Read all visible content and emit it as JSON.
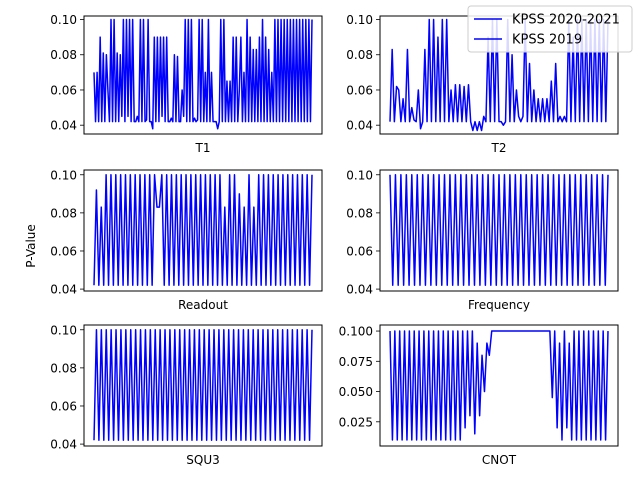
{
  "figure": {
    "ylabel": "P-Value",
    "legend": {
      "placement": "top-right",
      "entries": [
        {
          "label": "KPSS 2020-2021",
          "color": "#0000ff"
        },
        {
          "label": "KPSS 2019",
          "color": "#0000ff"
        }
      ]
    }
  },
  "chart_data": [
    {
      "type": "line",
      "xlabel": "T1",
      "ylim": [
        0.035,
        0.102
      ],
      "yticks": [
        "0.04",
        "0.06",
        "0.08",
        "0.10"
      ],
      "yticks_values": [
        0.04,
        0.06,
        0.08,
        0.1
      ],
      "series_color": "#0000ff",
      "values": [
        0.07,
        0.042,
        0.07,
        0.042,
        0.09,
        0.042,
        0.081,
        0.042,
        0.08,
        0.06,
        0.042,
        0.1,
        0.042,
        0.1,
        0.042,
        0.081,
        0.042,
        0.08,
        0.045,
        0.1,
        0.042,
        0.1,
        0.045,
        0.1,
        0.042,
        0.1,
        0.042,
        0.042,
        0.045,
        0.042,
        0.1,
        0.042,
        0.1,
        0.042,
        0.043,
        0.1,
        0.042,
        0.042,
        0.038,
        0.09,
        0.042,
        0.09,
        0.042,
        0.09,
        0.045,
        0.09,
        0.042,
        0.09,
        0.042,
        0.042,
        0.044,
        0.042,
        0.08,
        0.042,
        0.079,
        0.042,
        0.042,
        0.06,
        0.045,
        0.1,
        0.042,
        0.1,
        0.042,
        0.1,
        0.042,
        0.044,
        0.042,
        0.043,
        0.1,
        0.042,
        0.1,
        0.042,
        0.07,
        0.042,
        0.1,
        0.042,
        0.07,
        0.042,
        0.042,
        0.042,
        0.038,
        0.042,
        0.1,
        0.042,
        0.1,
        0.042,
        0.065,
        0.042,
        0.065,
        0.042,
        0.09,
        0.042,
        0.09,
        0.042,
        0.06,
        0.09,
        0.042,
        0.07,
        0.042,
        0.1,
        0.042,
        0.09,
        0.042,
        0.083,
        0.042,
        0.083,
        0.042,
        0.09,
        0.042,
        0.1,
        0.042,
        0.09,
        0.042,
        0.083,
        0.042,
        0.07,
        0.042,
        0.1,
        0.042,
        0.1,
        0.042,
        0.1,
        0.042,
        0.1,
        0.042,
        0.1,
        0.042,
        0.1,
        0.042,
        0.1,
        0.042,
        0.1,
        0.042,
        0.1,
        0.042,
        0.1,
        0.042,
        0.1,
        0.042,
        0.1,
        0.042,
        0.1
      ]
    },
    {
      "type": "line",
      "xlabel": "T2",
      "ylim": [
        0.035,
        0.102
      ],
      "yticks": [
        "0.04",
        "0.06",
        "0.08",
        "0.10"
      ],
      "yticks_values": [
        0.04,
        0.06,
        0.08,
        0.1
      ],
      "series_color": "#0000ff",
      "values": [
        0.042,
        0.083,
        0.042,
        0.062,
        0.06,
        0.042,
        0.055,
        0.042,
        0.083,
        0.042,
        0.05,
        0.043,
        0.042,
        0.06,
        0.038,
        0.042,
        0.083,
        0.042,
        0.1,
        0.042,
        0.1,
        0.042,
        0.09,
        0.042,
        0.1,
        0.042,
        0.1,
        0.042,
        0.06,
        0.042,
        0.063,
        0.042,
        0.063,
        0.042,
        0.062,
        0.042,
        0.063,
        0.042,
        0.037,
        0.042,
        0.037,
        0.042,
        0.037,
        0.045,
        0.042,
        0.09,
        0.042,
        0.1,
        0.042,
        0.1,
        0.042,
        0.042,
        0.04,
        0.042,
        0.1,
        0.042,
        0.08,
        0.042,
        0.06,
        0.045,
        0.042,
        0.045,
        0.1,
        0.042,
        0.075,
        0.042,
        0.06,
        0.042,
        0.055,
        0.042,
        0.055,
        0.042,
        0.055,
        0.042,
        0.065,
        0.042,
        0.075,
        0.042,
        0.045,
        0.042,
        0.045,
        0.042,
        0.1,
        0.042,
        0.09,
        0.042,
        0.1,
        0.042,
        0.1,
        0.042,
        0.1,
        0.042,
        0.1,
        0.042,
        0.1,
        0.042,
        0.1,
        0.042,
        0.1,
        0.042,
        0.1
      ]
    },
    {
      "type": "line",
      "xlabel": "Readout",
      "ylim": [
        0.039,
        0.1025
      ],
      "yticks": [
        "0.04",
        "0.06",
        "0.08",
        "0.10"
      ],
      "yticks_values": [
        0.04,
        0.06,
        0.08,
        0.1
      ],
      "series_color": "#0000ff",
      "values": [
        0.042,
        0.092,
        0.042,
        0.083,
        0.042,
        0.1,
        0.042,
        0.1,
        0.042,
        0.1,
        0.042,
        0.1,
        0.042,
        0.1,
        0.042,
        0.1,
        0.042,
        0.1,
        0.042,
        0.1,
        0.042,
        0.1,
        0.042,
        0.1,
        0.042,
        0.1,
        0.083,
        0.083,
        0.1,
        0.042,
        0.1,
        0.042,
        0.1,
        0.042,
        0.1,
        0.042,
        0.1,
        0.042,
        0.1,
        0.042,
        0.1,
        0.042,
        0.1,
        0.042,
        0.1,
        0.042,
        0.1,
        0.042,
        0.1,
        0.042,
        0.1,
        0.042,
        0.1,
        0.042,
        0.083,
        0.042,
        0.1,
        0.042,
        0.1,
        0.042,
        0.09,
        0.042,
        0.083,
        0.042,
        0.1,
        0.042,
        0.083,
        0.042,
        0.1,
        0.042,
        0.1,
        0.042,
        0.1,
        0.042,
        0.1,
        0.042,
        0.1,
        0.042,
        0.1,
        0.042,
        0.1,
        0.042,
        0.1,
        0.042,
        0.1,
        0.042,
        0.1,
        0.042,
        0.1,
        0.042,
        0.1
      ]
    },
    {
      "type": "line",
      "xlabel": "Frequency",
      "ylim": [
        0.039,
        0.1025
      ],
      "yticks": [
        "0.04",
        "0.06",
        "0.08",
        "0.10"
      ],
      "yticks_values": [
        0.04,
        0.06,
        0.08,
        0.1
      ],
      "series_color": "#0000ff",
      "values": [
        0.1,
        0.042,
        0.1,
        0.042,
        0.1,
        0.042,
        0.1,
        0.042,
        0.1,
        0.042,
        0.1,
        0.042,
        0.1,
        0.042,
        0.1,
        0.042,
        0.1,
        0.042,
        0.1,
        0.042,
        0.1,
        0.042,
        0.1,
        0.042,
        0.1,
        0.042,
        0.1,
        0.042,
        0.1,
        0.042,
        0.1,
        0.042,
        0.1,
        0.042,
        0.1,
        0.042,
        0.1,
        0.042,
        0.1,
        0.042,
        0.1,
        0.042,
        0.1,
        0.042,
        0.1,
        0.042,
        0.1,
        0.042,
        0.1,
        0.042,
        0.1,
        0.042,
        0.1,
        0.042,
        0.1,
        0.042,
        0.1,
        0.042,
        0.1,
        0.042,
        0.1,
        0.042,
        0.1,
        0.042,
        0.1,
        0.042,
        0.1,
        0.042,
        0.1,
        0.042,
        0.1,
        0.042,
        0.1,
        0.042,
        0.1,
        0.042,
        0.1,
        0.042,
        0.1,
        0.042,
        0.1
      ]
    },
    {
      "type": "line",
      "xlabel": "SQU3",
      "ylim": [
        0.039,
        0.1025
      ],
      "yticks": [
        "0.04",
        "0.06",
        "0.08",
        "0.10"
      ],
      "yticks_values": [
        0.04,
        0.06,
        0.08,
        0.1
      ],
      "series_color": "#0000ff",
      "values": [
        0.042,
        0.1,
        0.042,
        0.1,
        0.042,
        0.1,
        0.042,
        0.1,
        0.042,
        0.1,
        0.042,
        0.1,
        0.042,
        0.1,
        0.042,
        0.1,
        0.042,
        0.1,
        0.042,
        0.1,
        0.042,
        0.1,
        0.042,
        0.1,
        0.042,
        0.1,
        0.042,
        0.1,
        0.042,
        0.1,
        0.042,
        0.1,
        0.042,
        0.1,
        0.042,
        0.1,
        0.042,
        0.1,
        0.042,
        0.1,
        0.042,
        0.1,
        0.042,
        0.1,
        0.042,
        0.1,
        0.042,
        0.1,
        0.042,
        0.1,
        0.042,
        0.1,
        0.042,
        0.1,
        0.042,
        0.1,
        0.042,
        0.1,
        0.042,
        0.1,
        0.042,
        0.1,
        0.042,
        0.1,
        0.042,
        0.1,
        0.042,
        0.1,
        0.042,
        0.1,
        0.042,
        0.1,
        0.042,
        0.1,
        0.042,
        0.1,
        0.042,
        0.1,
        0.042,
        0.1,
        0.042,
        0.1,
        0.042,
        0.1,
        0.042,
        0.1,
        0.042,
        0.1,
        0.042,
        0.1
      ]
    },
    {
      "type": "line",
      "xlabel": "CNOT",
      "ylim": [
        0.005,
        0.105
      ],
      "yticks": [
        "0.025",
        "0.050",
        "0.075",
        "0.100"
      ],
      "yticks_values": [
        0.025,
        0.05,
        0.075,
        0.1
      ],
      "series_color": "#0000ff",
      "values": [
        0.1,
        0.01,
        0.1,
        0.01,
        0.1,
        0.01,
        0.1,
        0.01,
        0.1,
        0.01,
        0.1,
        0.01,
        0.1,
        0.01,
        0.1,
        0.01,
        0.1,
        0.01,
        0.1,
        0.01,
        0.1,
        0.01,
        0.1,
        0.01,
        0.1,
        0.01,
        0.1,
        0.01,
        0.1,
        0.01,
        0.1,
        0.02,
        0.1,
        0.03,
        0.1,
        0.015,
        0.09,
        0.03,
        0.08,
        0.05,
        0.09,
        0.08,
        0.1,
        0.1,
        0.1,
        0.1,
        0.1,
        0.1,
        0.1,
        0.1,
        0.1,
        0.1,
        0.1,
        0.1,
        0.1,
        0.1,
        0.1,
        0.1,
        0.1,
        0.1,
        0.1,
        0.1,
        0.1,
        0.1,
        0.1,
        0.1,
        0.1,
        0.045,
        0.1,
        0.02,
        0.09,
        0.01,
        0.1,
        0.02,
        0.09,
        0.01,
        0.1,
        0.01,
        0.1,
        0.01,
        0.1,
        0.01,
        0.1,
        0.01,
        0.1,
        0.01,
        0.1,
        0.01,
        0.1,
        0.01,
        0.1
      ]
    }
  ]
}
